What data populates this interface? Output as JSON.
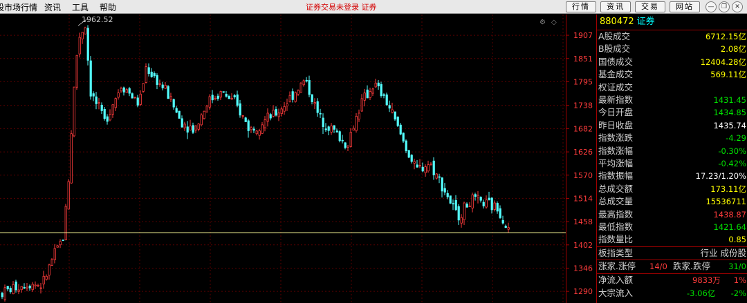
{
  "menu": {
    "market_quotes": "股市场行情",
    "news": "资讯",
    "tools": "工具",
    "help": "帮助"
  },
  "status_title": "证券交易未登录  证券",
  "toolbar": {
    "quotes": "行情",
    "info": "资讯",
    "trade": "交易",
    "website": "网站"
  },
  "panel": {
    "code": "880472",
    "name": "证券",
    "rows": [
      {
        "label": "A股成交",
        "value": "6712.15亿",
        "color": "yellow"
      },
      {
        "label": "B股成交",
        "value": "2.08亿",
        "color": "yellow"
      },
      {
        "label": "国债成交",
        "value": "12404.28亿",
        "color": "yellow"
      },
      {
        "label": "基金成交",
        "value": "569.11亿",
        "color": "yellow"
      },
      {
        "label": "权证成交",
        "value": "",
        "color": "yellow"
      },
      {
        "label": "最新指数",
        "value": "1431.45",
        "color": "green"
      },
      {
        "label": "今日开盘",
        "value": "1434.85",
        "color": "green"
      },
      {
        "label": "昨日收盘",
        "value": "1435.74",
        "color": "white"
      },
      {
        "label": "指数涨跌",
        "value": "-4.29",
        "color": "green"
      },
      {
        "label": "指数涨幅",
        "value": "-0.30%",
        "color": "green"
      },
      {
        "label": "平均涨幅",
        "value": "-0.42%",
        "color": "green"
      },
      {
        "label": "指数振幅",
        "value": "17.23/1.20%",
        "color": "white"
      },
      {
        "label": "总成交额",
        "value": "173.11亿",
        "color": "yellow"
      },
      {
        "label": "总成交量",
        "value": "15536711",
        "color": "yellow"
      },
      {
        "label": "最高指数",
        "value": "1438.87",
        "color": "red"
      },
      {
        "label": "最低指数",
        "value": "1421.64",
        "color": "green"
      },
      {
        "label": "指数量比",
        "value": "0.85",
        "color": "yellow"
      }
    ],
    "board_type_label": "板指类型",
    "board_type_value": "行业 成份股",
    "limit_up_label": "涨家.涨停",
    "limit_up_value": "14/0",
    "limit_down_label": "跌家.跌停",
    "limit_down_value": "31/0",
    "net_inflow_label": "净流入额",
    "net_inflow_value": "9833万",
    "net_inflow_pct": "1%",
    "block_inflow_label": "大宗流入",
    "block_inflow_value": "-3.06亿",
    "block_inflow_pct": "-2%"
  },
  "chart_data": {
    "type": "candlestick",
    "y_ticks": [
      "1907",
      "1851",
      "1795",
      "1738",
      "1682",
      "1626",
      "1570",
      "1514",
      "1458",
      "1402",
      "1346",
      "1290"
    ],
    "ylim": [
      1262,
      1957
    ],
    "peak_annotation": "1962.52",
    "last_close_line": 1431.45,
    "colors": {
      "up": "#ff3c3c",
      "down": "#54ffff",
      "line": "#ffff99"
    }
  }
}
